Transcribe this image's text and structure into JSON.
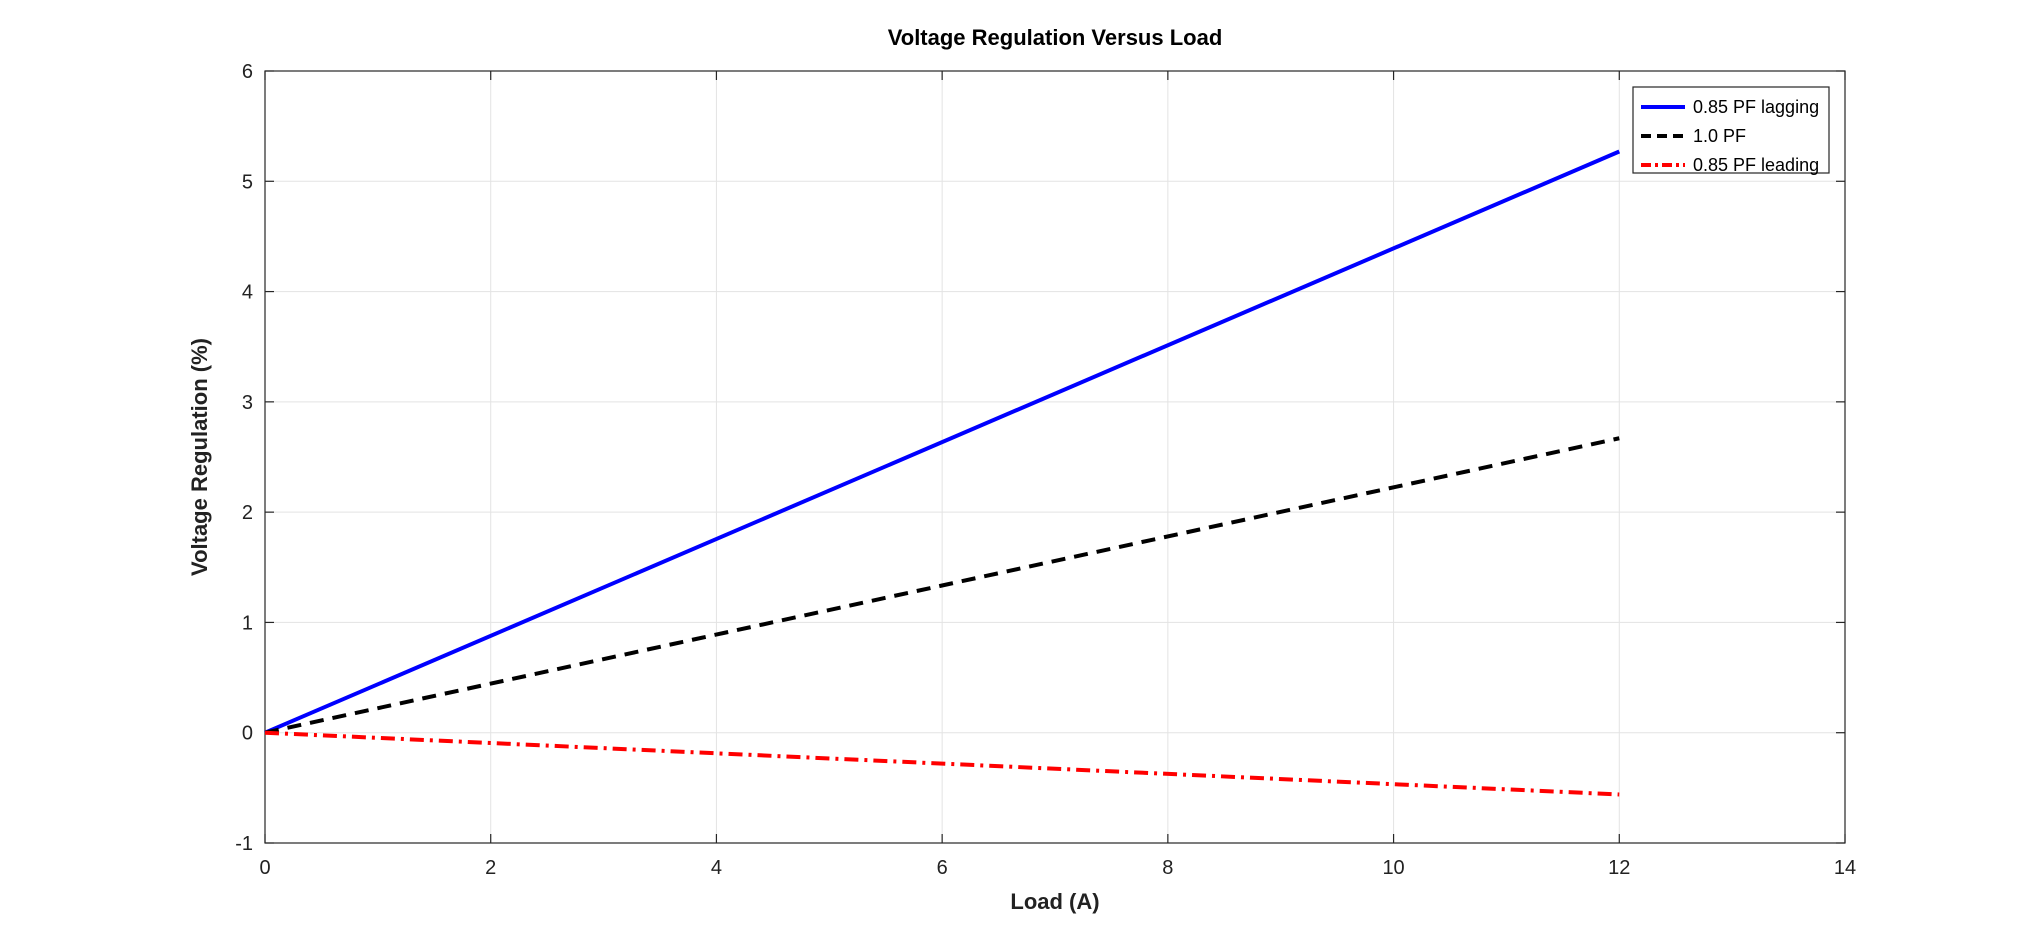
{
  "chart_data": {
    "type": "line",
    "title": "Voltage Regulation Versus Load",
    "xlabel": "Load (A)",
    "ylabel": "Voltage Regulation (%)",
    "xlim": [
      0,
      14
    ],
    "ylim": [
      -1,
      6
    ],
    "xticks": [
      "0",
      "2",
      "4",
      "6",
      "8",
      "10",
      "12",
      "14"
    ],
    "yticks": [
      "-1",
      "0",
      "1",
      "2",
      "3",
      "4",
      "5",
      "6"
    ],
    "grid": true,
    "legend_position": "top-right",
    "series": [
      {
        "name": "0.85 PF lagging",
        "color": "#0000ff",
        "style": "solid",
        "x": [
          0,
          12
        ],
        "y": [
          0,
          5.27
        ]
      },
      {
        "name": "1.0 PF",
        "color": "#000000",
        "style": "dashed",
        "x": [
          0,
          12
        ],
        "y": [
          0,
          2.67
        ]
      },
      {
        "name": "0.85 PF leading",
        "color": "#ff0000",
        "style": "dashdot",
        "x": [
          0,
          12
        ],
        "y": [
          0,
          -0.56
        ]
      }
    ]
  }
}
